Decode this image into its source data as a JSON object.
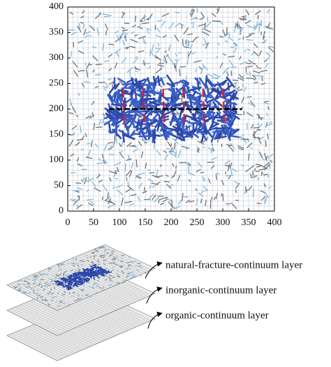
{
  "chart_data": {
    "type": "fracture-map",
    "xlim": [
      0,
      400
    ],
    "ylim": [
      0,
      400
    ],
    "xticks": [
      0,
      50,
      100,
      150,
      200,
      250,
      300,
      350,
      400
    ],
    "yticks": [
      0,
      50,
      100,
      150,
      200,
      250,
      300,
      350,
      400
    ],
    "grid": true
  },
  "diagram": {
    "layers": [
      {
        "label": "natural-fracture-continuum layer"
      },
      {
        "label": "inorganic-continuum layer"
      },
      {
        "label": "organic-continuum layer"
      }
    ]
  }
}
